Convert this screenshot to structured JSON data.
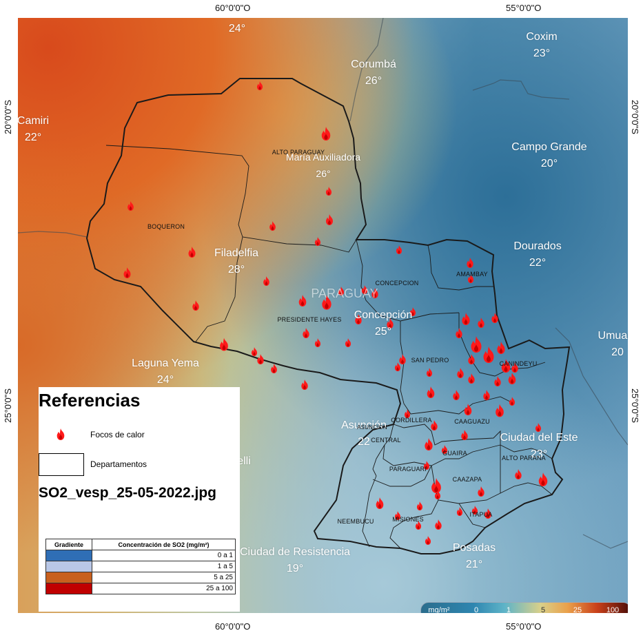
{
  "coordinates": {
    "top": [
      "60°0'0\"O",
      "55°0'0\"O"
    ],
    "bottom": [
      "60°0'0\"O",
      "55°0'0\"O"
    ],
    "left": [
      "20°0'0\"S",
      "25°0'0\"S"
    ],
    "right": [
      "20°0'0\"S",
      "25°0'0\"S"
    ]
  },
  "cities": [
    {
      "name": "24°",
      "temp": ""
    },
    {
      "name": "Corumbá",
      "temp": "26°"
    },
    {
      "name": "Coxim",
      "temp": "23°"
    },
    {
      "name": "Camiri",
      "temp": "22°"
    },
    {
      "name": "Campo Grande",
      "temp": "20°"
    },
    {
      "name": "María Auxiliadora",
      "temp": "26°"
    },
    {
      "name": "Filadelfia",
      "temp": "28°"
    },
    {
      "name": "Dourados",
      "temp": "22°"
    },
    {
      "name": "PARAGUAY",
      "temp": ""
    },
    {
      "name": "Concepción",
      "temp": "25°"
    },
    {
      "name": "Umuara",
      "temp": "20"
    },
    {
      "name": "Laguna Yema",
      "temp": "24°"
    },
    {
      "name": "Asunción",
      "temp": "22"
    },
    {
      "name": "Ciudad del Este",
      "temp": "23°"
    },
    {
      "name": "elli",
      "temp": ""
    },
    {
      "name": "Ciudad de Resistencia",
      "temp": "19°"
    },
    {
      "name": "Posadas",
      "temp": "21°"
    }
  ],
  "departments": [
    "ALTO PARAGUAY",
    "BOQUERON",
    "PRESIDENTE HAYES",
    "CONCEPCION",
    "AMAMBAY",
    "SAN PEDRO",
    "CANINDEYU",
    "CORDILLERA",
    "ASUNCION",
    "CENTRAL",
    "CAAGUAZU",
    "GUAIRA",
    "ALTO PARANA",
    "PARAGUARI",
    "CAAZAPA",
    "MISIONES",
    "ITAPUA",
    "NEEMBUCU"
  ],
  "legend": {
    "title": "Referencias",
    "fire_label": "Focos de calor",
    "dept_label": "Departamentos",
    "file_name": "SO2_vesp_25-05-2022.jpg",
    "table_headers": [
      "Gradiente",
      "Concentración de SO2 (mg/m²)"
    ],
    "rows": [
      {
        "value": "0 a 1",
        "color": "#2f6eb5"
      },
      {
        "value": "1 a 5",
        "color": "#b9c7e6"
      },
      {
        "value": "5 a 25",
        "color": "#c8601e"
      },
      {
        "value": "25 a 100",
        "color": "#c00000"
      }
    ]
  },
  "colorbar": {
    "unit": "mg/m²",
    "ticks": [
      "0",
      "1",
      "5",
      "25",
      "100"
    ]
  },
  "colors": {
    "fire": "#ff1a1a",
    "border": "#1a1a1a"
  }
}
